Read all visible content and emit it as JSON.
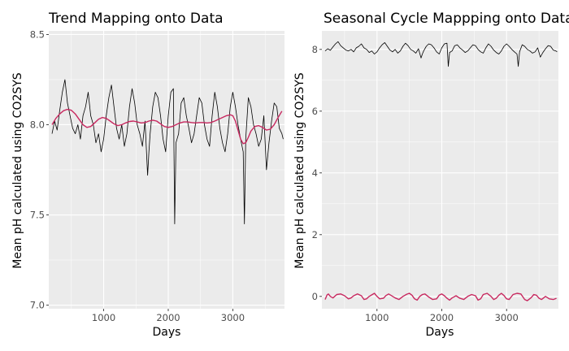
{
  "colors": {
    "data_line": "#000000",
    "model_line": "#c8285f",
    "panel_bg": "#ebebeb",
    "grid": "#ffffff"
  },
  "chart_data": [
    {
      "type": "line",
      "title": "Trend Mapping onto Data",
      "xlabel": "Days",
      "ylabel": "Mean pH calculated using CO2SYS",
      "xlim": [
        150,
        3800
      ],
      "ylim": [
        6.98,
        8.52
      ],
      "xticks": [
        1000,
        2000,
        3000
      ],
      "yticks": [
        7.0,
        7.5,
        8.0,
        8.5
      ],
      "ytick_labels": [
        "7.0",
        "7.5",
        "8.0",
        "8.5"
      ],
      "grid": true,
      "legend": "none",
      "series": [
        {
          "role": "observed",
          "color": "#000000",
          "x": [
            200,
            240,
            280,
            320,
            360,
            400,
            440,
            480,
            520,
            560,
            600,
            640,
            680,
            720,
            760,
            800,
            840,
            880,
            920,
            960,
            1000,
            1040,
            1080,
            1120,
            1160,
            1200,
            1240,
            1280,
            1320,
            1360,
            1400,
            1440,
            1480,
            1520,
            1560,
            1600,
            1640,
            1680,
            1700,
            1720,
            1760,
            1800,
            1840,
            1880,
            1920,
            1960,
            2000,
            2040,
            2080,
            2100,
            2120,
            2160,
            2200,
            2240,
            2280,
            2320,
            2360,
            2400,
            2440,
            2480,
            2520,
            2560,
            2600,
            2640,
            2680,
            2720,
            2760,
            2800,
            2840,
            2880,
            2920,
            2960,
            3000,
            3040,
            3080,
            3120,
            3160,
            3180,
            3200,
            3240,
            3280,
            3320,
            3360,
            3400,
            3440,
            3480,
            3520,
            3560,
            3600,
            3640,
            3680,
            3720,
            3760,
            3780
          ],
          "y": [
            7.95,
            8.02,
            7.97,
            8.08,
            8.18,
            8.25,
            8.12,
            8.05,
            7.98,
            7.95,
            8.0,
            7.92,
            8.05,
            8.1,
            8.18,
            8.05,
            8.0,
            7.9,
            7.95,
            7.85,
            7.92,
            8.05,
            8.15,
            8.22,
            8.1,
            7.98,
            7.92,
            8.0,
            7.88,
            7.95,
            8.1,
            8.2,
            8.12,
            8.0,
            7.95,
            7.88,
            8.02,
            7.72,
            7.85,
            7.95,
            8.1,
            8.18,
            8.15,
            8.05,
            7.92,
            7.85,
            8.05,
            8.18,
            8.2,
            7.45,
            7.9,
            7.95,
            8.12,
            8.15,
            8.05,
            7.98,
            7.9,
            7.95,
            8.05,
            8.15,
            8.12,
            8.0,
            7.92,
            7.88,
            8.05,
            8.18,
            8.1,
            7.98,
            7.9,
            7.85,
            7.95,
            8.1,
            8.18,
            8.1,
            8.0,
            7.92,
            7.85,
            7.45,
            7.92,
            8.15,
            8.1,
            8.0,
            7.95,
            7.88,
            7.92,
            8.05,
            7.75,
            7.9,
            8.02,
            8.12,
            8.1,
            7.98,
            7.95,
            7.92
          ]
        },
        {
          "role": "fitted",
          "color": "#c8285f",
          "x": [
            200,
            260,
            320,
            380,
            440,
            500,
            560,
            620,
            680,
            740,
            800,
            860,
            920,
            980,
            1040,
            1100,
            1160,
            1220,
            1280,
            1340,
            1400,
            1460,
            1520,
            1580,
            1640,
            1700,
            1760,
            1820,
            1880,
            1940,
            2000,
            2060,
            2120,
            2180,
            2240,
            2300,
            2360,
            2420,
            2480,
            2540,
            2600,
            2660,
            2720,
            2780,
            2840,
            2900,
            2960,
            3000,
            3040,
            3080,
            3120,
            3160,
            3200,
            3240,
            3280,
            3340,
            3400,
            3460,
            3520,
            3580,
            3640,
            3700,
            3760
          ],
          "y": [
            8.0,
            8.035,
            8.06,
            8.078,
            8.085,
            8.08,
            8.06,
            8.03,
            8.0,
            7.985,
            7.99,
            8.01,
            8.03,
            8.04,
            8.035,
            8.02,
            8.005,
            7.995,
            8.0,
            8.01,
            8.018,
            8.02,
            8.015,
            8.01,
            8.012,
            8.02,
            8.025,
            8.02,
            8.005,
            7.99,
            7.985,
            7.99,
            8.0,
            8.01,
            8.015,
            8.015,
            8.012,
            8.01,
            8.012,
            8.012,
            8.01,
            8.012,
            8.02,
            8.03,
            8.04,
            8.05,
            8.055,
            8.05,
            8.02,
            7.97,
            7.92,
            7.895,
            7.9,
            7.93,
            7.965,
            7.99,
            7.995,
            7.985,
            7.97,
            7.975,
            8.0,
            8.04,
            8.075
          ]
        }
      ]
    },
    {
      "type": "line",
      "title": "Seasonal Cycle Mappping onto Data",
      "xlabel": "Days",
      "ylabel": "Mean pH calculated using CO2SYS",
      "xlim": [
        150,
        3800
      ],
      "ylim": [
        -0.4,
        8.6
      ],
      "xticks": [
        1000,
        2000,
        3000
      ],
      "yticks": [
        0,
        2,
        4,
        6,
        8
      ],
      "ytick_labels": [
        "0",
        "2",
        "4",
        "6",
        "8"
      ],
      "grid": true,
      "legend": "none",
      "series": [
        {
          "role": "observed",
          "color": "#000000",
          "x": [
            200,
            240,
            280,
            320,
            360,
            400,
            440,
            480,
            520,
            560,
            600,
            640,
            680,
            720,
            760,
            800,
            840,
            880,
            920,
            960,
            1000,
            1040,
            1080,
            1120,
            1160,
            1200,
            1240,
            1280,
            1320,
            1360,
            1400,
            1440,
            1480,
            1520,
            1560,
            1600,
            1640,
            1680,
            1700,
            1720,
            1760,
            1800,
            1840,
            1880,
            1920,
            1960,
            2000,
            2040,
            2080,
            2100,
            2120,
            2160,
            2200,
            2240,
            2280,
            2320,
            2360,
            2400,
            2440,
            2480,
            2520,
            2560,
            2600,
            2640,
            2680,
            2720,
            2760,
            2800,
            2840,
            2880,
            2920,
            2960,
            3000,
            3040,
            3080,
            3120,
            3160,
            3180,
            3200,
            3240,
            3280,
            3320,
            3360,
            3400,
            3440,
            3480,
            3520,
            3560,
            3600,
            3640,
            3680,
            3720,
            3760,
            3780
          ],
          "y": [
            7.95,
            8.02,
            7.97,
            8.08,
            8.18,
            8.25,
            8.12,
            8.05,
            7.98,
            7.95,
            8.0,
            7.92,
            8.05,
            8.1,
            8.18,
            8.05,
            8.0,
            7.9,
            7.95,
            7.85,
            7.92,
            8.05,
            8.15,
            8.22,
            8.1,
            7.98,
            7.92,
            8.0,
            7.88,
            7.95,
            8.1,
            8.2,
            8.12,
            8.0,
            7.95,
            7.88,
            8.02,
            7.72,
            7.85,
            7.95,
            8.1,
            8.18,
            8.15,
            8.05,
            7.92,
            7.85,
            8.05,
            8.18,
            8.2,
            7.45,
            7.9,
            7.95,
            8.12,
            8.15,
            8.05,
            7.98,
            7.9,
            7.95,
            8.05,
            8.15,
            8.12,
            8.0,
            7.92,
            7.88,
            8.05,
            8.18,
            8.1,
            7.98,
            7.9,
            7.85,
            7.95,
            8.1,
            8.18,
            8.1,
            8.0,
            7.92,
            7.85,
            7.45,
            7.92,
            8.15,
            8.1,
            8.0,
            7.95,
            7.88,
            7.92,
            8.05,
            7.75,
            7.9,
            8.02,
            8.12,
            8.1,
            7.98,
            7.95,
            7.92
          ]
        },
        {
          "role": "fitted",
          "color": "#c8285f",
          "x": [
            200,
            230,
            250,
            280,
            320,
            380,
            440,
            500,
            560,
            600,
            640,
            700,
            760,
            800,
            840,
            880,
            920,
            960,
            1000,
            1040,
            1100,
            1140,
            1180,
            1220,
            1280,
            1340,
            1400,
            1460,
            1500,
            1540,
            1580,
            1620,
            1660,
            1700,
            1740,
            1800,
            1860,
            1920,
            1960,
            2000,
            2040,
            2080,
            2120,
            2160,
            2220,
            2280,
            2340,
            2400,
            2460,
            2520,
            2560,
            2600,
            2640,
            2700,
            2760,
            2800,
            2840,
            2880,
            2920,
            2960,
            3000,
            3040,
            3100,
            3160,
            3220,
            3280,
            3320,
            3380,
            3420,
            3460,
            3500,
            3540,
            3600,
            3660,
            3720,
            3770
          ],
          "y": [
            -0.1,
            0.05,
            0.08,
            0.0,
            -0.05,
            0.06,
            0.08,
            0.02,
            -0.08,
            -0.05,
            0.02,
            0.08,
            0.02,
            -0.1,
            -0.08,
            0.0,
            0.05,
            0.1,
            0.0,
            -0.08,
            -0.06,
            0.03,
            0.08,
            0.03,
            -0.05,
            -0.1,
            0.0,
            0.07,
            0.1,
            0.04,
            -0.08,
            -0.12,
            0.0,
            0.06,
            0.08,
            -0.02,
            -0.1,
            -0.08,
            0.04,
            0.08,
            0.02,
            -0.06,
            -0.12,
            -0.05,
            0.02,
            -0.06,
            -0.1,
            0.0,
            0.06,
            0.02,
            -0.12,
            -0.08,
            0.06,
            0.1,
            0.0,
            -0.1,
            -0.06,
            0.04,
            0.1,
            0.03,
            -0.08,
            -0.1,
            0.06,
            0.1,
            0.08,
            -0.1,
            -0.14,
            -0.04,
            0.06,
            0.04,
            -0.06,
            -0.1,
            0.0,
            -0.08,
            -0.1,
            -0.06
          ]
        }
      ]
    }
  ]
}
